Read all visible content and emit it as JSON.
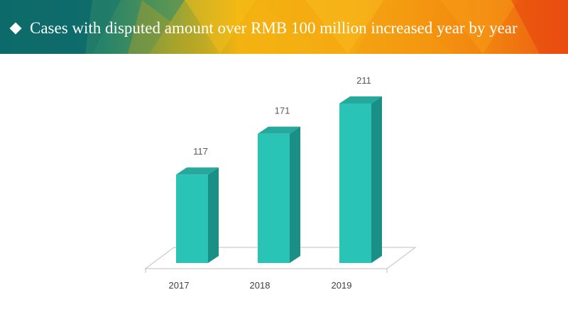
{
  "header": {
    "title": "Cases with disputed amount over RMB 100 million increased year by year",
    "bullet_icon": "diamond-bullet-icon",
    "colors": [
      "#0e6b6b",
      "#1a8a7d",
      "#e8a21c",
      "#f7b500",
      "#f29111",
      "#ee5a12"
    ]
  },
  "chart_data": {
    "type": "bar",
    "style": "3d-column",
    "categories": [
      "2017",
      "2018",
      "2019"
    ],
    "values": [
      117,
      171,
      211
    ],
    "title": "",
    "xlabel": "",
    "ylabel": "",
    "ylim": [
      0,
      211
    ],
    "grid": false,
    "legend": "none",
    "bar_color": "#2ac4b6",
    "bar_side_color": "#1a8f85",
    "bar_top_color": "#26a99c"
  }
}
